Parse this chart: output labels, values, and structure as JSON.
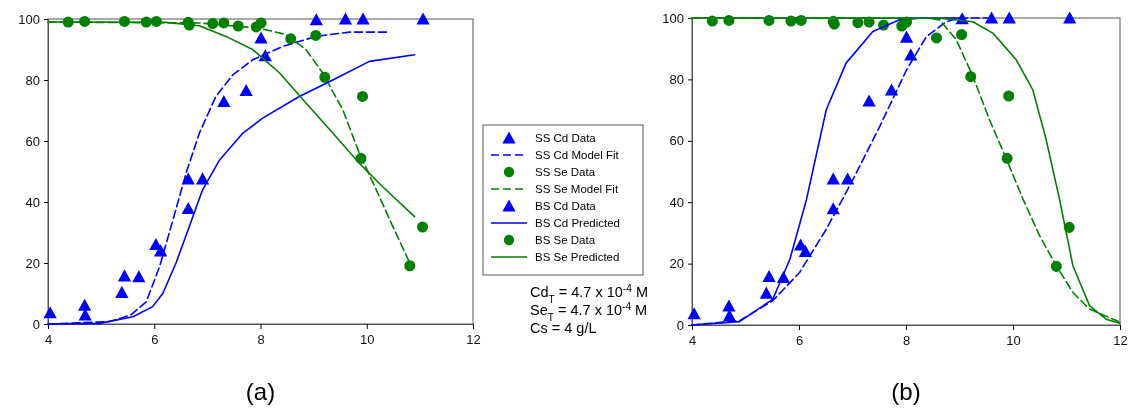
{
  "chart_data": [
    {
      "type": "scatter",
      "xlabel": "(a)",
      "xlim": [
        4,
        12
      ],
      "xticks": [
        4,
        6,
        8,
        10,
        12
      ],
      "ylim": [
        0,
        100
      ],
      "yticks": [
        0,
        20,
        40,
        60,
        80,
        100
      ],
      "legend": "right",
      "grid": false,
      "annotations": [
        "Cd$_{T}$ = 4.7 x 10$^{-4}$ M",
        "Se$_{T}$ = 4.7 x 10$^{-4}$ M",
        "Cs = 4 g/L"
      ],
      "series": [
        {
          "name": "SS Cd Data",
          "type": "scatter",
          "marker": "triangle",
          "color": "#0000ff",
          "x": [
            4.04,
            4.7,
            5.39,
            5.71,
            6.12,
            6.64,
            6.91,
            7.73,
            8.09,
            9.6
          ],
          "values": [
            3.7,
            3,
            10.4,
            15.5,
            24,
            37.9,
            47.6,
            76.6,
            88,
            100
          ]
        },
        {
          "name": "SS Cd Model Fit",
          "type": "line",
          "line_style": "dashed",
          "color": "#0000ff",
          "x": [
            4,
            5.16,
            5.56,
            5.85,
            6.1,
            6.35,
            6.6,
            6.85,
            7.16,
            7.48,
            7.86,
            8.42,
            9.05,
            9.68,
            10.4
          ],
          "values": [
            0,
            0.8,
            3,
            7.3,
            18.8,
            34,
            49.5,
            62.6,
            74.6,
            81.7,
            86.7,
            91,
            94.3,
            95.7,
            95.7
          ]
        },
        {
          "name": "SS Se Data",
          "type": "scatter",
          "marker": "circle",
          "color": "#008000",
          "x": [
            4.38,
            5.85,
            6.66,
            7.1,
            7.58,
            7.92,
            8.57,
            9.21,
            9.89,
            10.81
          ],
          "values": [
            99,
            99,
            98,
            98.5,
            97.7,
            97.4,
            93.5,
            80.9,
            54.3,
            19.1
          ]
        },
        {
          "name": "SS Se Model Fit",
          "type": "line",
          "line_style": "dashed",
          "color": "#008000",
          "x": [
            4,
            6.85,
            7.98,
            8.48,
            8.86,
            9.17,
            9.55,
            9.86,
            10.18,
            10.49,
            10.81
          ],
          "values": [
            99,
            98.7,
            97,
            94.9,
            89.9,
            82.3,
            70.2,
            56,
            44,
            32,
            20
          ]
        },
        {
          "name": "BS Cd Data",
          "type": "scatter",
          "marker": "triangle",
          "color": "#0000ff",
          "x": [
            4.69,
            5.44,
            6.03,
            6.64,
            7.31,
            8.01,
            9.05,
            9.93,
            11.06
          ],
          "values": [
            6.2,
            15.8,
            26.1,
            47.6,
            73,
            93.8,
            99.8,
            100,
            100
          ]
        },
        {
          "name": "BS Cd Predicted",
          "type": "line",
          "line_style": "solid",
          "color": "#0000ff",
          "x": [
            4,
            4.97,
            5.6,
            5.97,
            6.16,
            6.41,
            6.66,
            6.91,
            7.23,
            7.67,
            8.04,
            8.73,
            9.36,
            10.05,
            10.9
          ],
          "values": [
            0,
            0.2,
            2.4,
            5.7,
            10,
            20,
            32,
            44,
            53.8,
            62.6,
            67.5,
            74.6,
            80,
            86.1,
            88.3
          ]
        },
        {
          "name": "BS Se Data",
          "type": "scatter",
          "marker": "circle",
          "color": "#008000",
          "x": [
            4.69,
            5.44,
            6.04,
            6.64,
            7.31,
            8.01,
            9.04,
            9.92,
            11.05
          ],
          "values": [
            99.2,
            99.2,
            99.2,
            98.9,
            98.7,
            98.7,
            94.6,
            74.6,
            31.8
          ]
        },
        {
          "name": "BS Se Predicted",
          "type": "line",
          "line_style": "solid",
          "color": "#008000",
          "x": [
            4,
            6.22,
            6.85,
            7.35,
            7.86,
            8.36,
            8.86,
            9.36,
            9.86,
            10.3,
            10.9
          ],
          "values": [
            99,
            98.9,
            97.8,
            94.3,
            89.9,
            82.3,
            72.4,
            62.6,
            52.7,
            45,
            35.2
          ]
        }
      ]
    },
    {
      "type": "scatter",
      "xlabel": "(b)",
      "xlim": [
        4,
        12
      ],
      "xticks": [
        4,
        6,
        8,
        10,
        12
      ],
      "ylim": [
        0,
        100
      ],
      "yticks": [
        0,
        20,
        40,
        60,
        80,
        100
      ],
      "grid": false,
      "series": [
        {
          "type": "scatter",
          "marker": "triangle",
          "color": "#0000ff",
          "x": [
            4.04,
            4.7,
            5.39,
            5.71,
            6.12,
            6.64,
            6.91,
            7.73,
            8.09,
            9.6
          ],
          "values": [
            3.7,
            3,
            10.4,
            15.5,
            24,
            37.9,
            47.6,
            76.6,
            88,
            100
          ]
        },
        {
          "type": "line",
          "line_style": "dashed",
          "color": "#0000ff",
          "x": [
            4,
            4.89,
            5.51,
            6.01,
            6.51,
            7.01,
            7.51,
            8.01,
            8.38,
            8.75,
            9,
            9.6
          ],
          "values": [
            0,
            1.4,
            7.9,
            17.1,
            31.2,
            47.4,
            64.7,
            83.1,
            93.9,
            98.8,
            100,
            100
          ]
        },
        {
          "type": "scatter",
          "marker": "circle",
          "color": "#008000",
          "x": [
            4.38,
            5.85,
            6.66,
            7.1,
            7.58,
            7.92,
            8.57,
            9.21,
            9.89,
            10.81
          ],
          "values": [
            99,
            99,
            98,
            98.5,
            97.7,
            97.4,
            93.5,
            80.9,
            54.3,
            19.1
          ]
        },
        {
          "type": "line",
          "line_style": "dashed",
          "color": "#008000",
          "x": [
            4,
            8.4,
            8.63,
            8.94,
            9.25,
            9.56,
            9.88,
            10.19,
            10.5,
            10.81,
            11.12,
            11.43,
            12
          ],
          "values": [
            100,
            100,
            99.4,
            92.9,
            81,
            66.9,
            53.9,
            40.9,
            29,
            19.3,
            10.6,
            5.2,
            0.9
          ]
        },
        {
          "type": "scatter",
          "marker": "triangle",
          "color": "#0000ff",
          "x": [
            4.69,
            5.44,
            6.03,
            6.64,
            7.31,
            8.01,
            9.05,
            9.93,
            11.06
          ],
          "values": [
            6.2,
            15.8,
            26.1,
            47.6,
            73,
            93.8,
            99.8,
            100,
            100
          ]
        },
        {
          "type": "line",
          "line_style": "solid",
          "color": "#0000ff",
          "x": [
            4,
            4.89,
            5.51,
            5.83,
            6.14,
            6.51,
            6.88,
            7.38,
            7.88,
            8.26,
            9
          ],
          "values": [
            0,
            1.1,
            8.4,
            21.4,
            40.9,
            70.1,
            85.3,
            95.6,
            99.4,
            99.9,
            100
          ]
        },
        {
          "type": "scatter",
          "marker": "circle",
          "color": "#008000",
          "x": [
            4.69,
            5.44,
            6.04,
            6.64,
            7.31,
            8.01,
            9.04,
            9.92,
            11.05
          ],
          "values": [
            99.2,
            99.2,
            99.2,
            98.9,
            98.7,
            98.7,
            94.6,
            74.6,
            31.8
          ]
        },
        {
          "type": "line",
          "line_style": "solid",
          "color": "#008000",
          "x": [
            4,
            8.63,
            9.25,
            9.63,
            10.06,
            10.37,
            10.62,
            10.87,
            11.12,
            11.43,
            11.74,
            12
          ],
          "values": [
            100,
            99.9,
            98.8,
            95,
            86.4,
            76.6,
            60.4,
            40.9,
            19.3,
            6.3,
            1.9,
            0.6
          ]
        }
      ]
    }
  ]
}
